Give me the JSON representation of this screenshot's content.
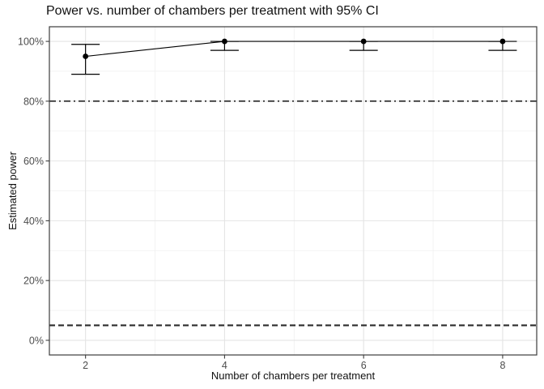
{
  "chart_data": {
    "type": "line",
    "title": "Power vs. number of chambers per treatment with 95% CI",
    "xlabel": "Number of chambers per treatment",
    "ylabel": "Estimated power",
    "points": [
      {
        "x": 2,
        "power": 95,
        "ci_lower": 89,
        "ci_upper": 99
      },
      {
        "x": 4,
        "power": 100,
        "ci_lower": 97,
        "ci_upper": 100
      },
      {
        "x": 6,
        "power": 100,
        "ci_lower": 97,
        "ci_upper": 100
      },
      {
        "x": 8,
        "power": 100,
        "ci_lower": 97,
        "ci_upper": 100
      }
    ],
    "reference_lines": [
      {
        "y": 80,
        "linetype": "dotdash"
      },
      {
        "y": 5,
        "linetype": "dashed"
      }
    ],
    "x_ticks": [
      2,
      4,
      6,
      8
    ],
    "x_tick_labels": [
      "2",
      "4",
      "6",
      "8"
    ],
    "y_ticks": [
      0,
      20,
      40,
      60,
      80,
      100
    ],
    "y_tick_labels": [
      "0%",
      "20%",
      "40%",
      "60%",
      "80%",
      "100%"
    ],
    "x_minor_ticks": [
      3,
      5,
      7
    ],
    "y_minor_ticks": [
      10,
      30,
      50,
      70,
      90
    ],
    "xlim": [
      1.48,
      8.49
    ],
    "ylim": [
      -4.9,
      104.9
    ],
    "grid": true,
    "legend_position": "none",
    "colors": {
      "data": "#000000",
      "title_text": "#111111",
      "axis_text": "#4d4d4d",
      "grid_major": "#e4e4e4",
      "grid_minor": "#f0f0f0",
      "panel_border": "#3c3c3c",
      "tick_mark": "#3c3c3c",
      "dashed_line": "#2b2b2b",
      "background": "#ffffff"
    }
  }
}
